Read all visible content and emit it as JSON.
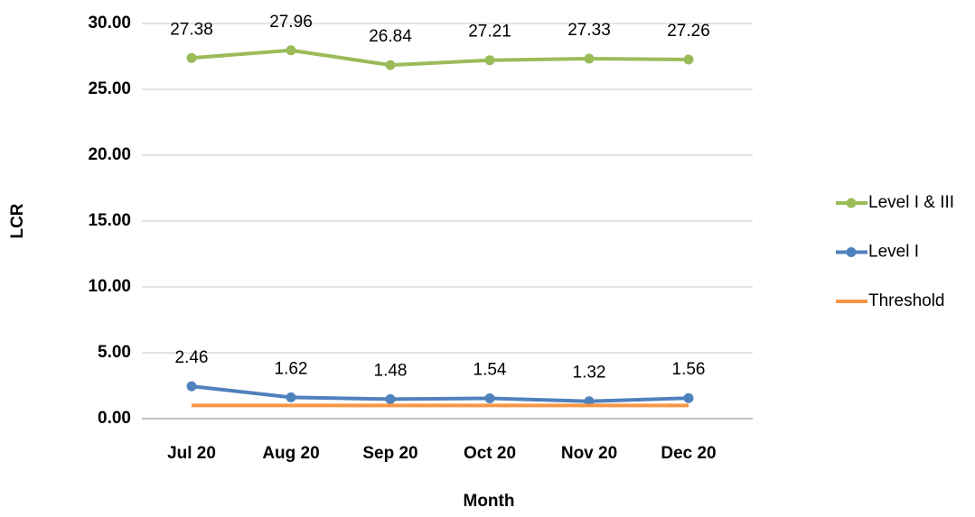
{
  "chart_data": {
    "type": "line",
    "x_label": "Month",
    "y_label": "LCR",
    "categories": [
      "Jul 20",
      "Aug 20",
      "Sep 20",
      "Oct 20",
      "Nov 20",
      "Dec 20"
    ],
    "series": [
      {
        "name": "Level I & III",
        "color": "#9bbb59",
        "markers": true,
        "data_labels": true,
        "values": [
          27.38,
          27.96,
          26.84,
          27.21,
          27.33,
          27.26
        ]
      },
      {
        "name": "Level I",
        "color": "#4f81bd",
        "markers": true,
        "data_labels": true,
        "values": [
          2.46,
          1.62,
          1.48,
          1.54,
          1.32,
          1.56
        ]
      },
      {
        "name": "Threshold",
        "color": "#f79646",
        "markers": false,
        "data_labels": false,
        "values": [
          1,
          1,
          1,
          1,
          1,
          1
        ]
      }
    ],
    "ylim": [
      0,
      30
    ],
    "yticks": [
      {
        "value": 0,
        "label": "0.00"
      },
      {
        "value": 5,
        "label": "5.00"
      },
      {
        "value": 10,
        "label": "10.00"
      },
      {
        "value": 15,
        "label": "15.00"
      },
      {
        "value": 20,
        "label": "20.00"
      },
      {
        "value": 25,
        "label": "25.00"
      },
      {
        "value": 30,
        "label": "30.00"
      }
    ],
    "grid": true,
    "legend": "right"
  }
}
